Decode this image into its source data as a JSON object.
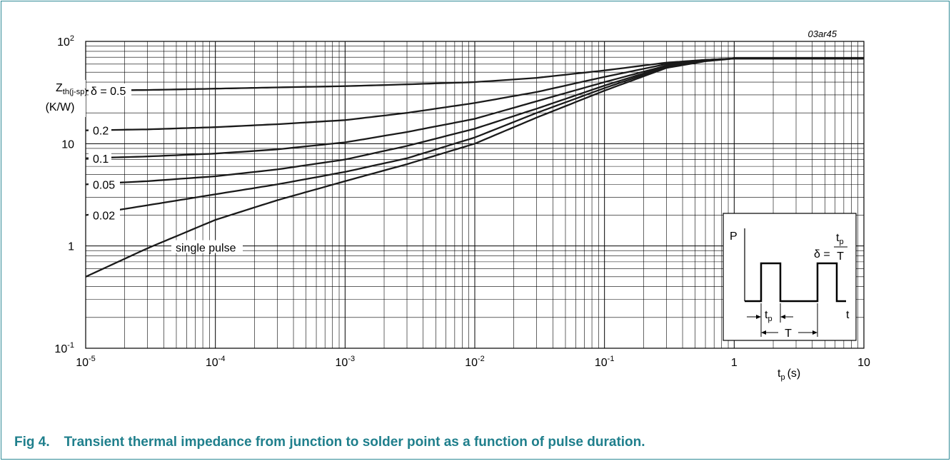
{
  "figure": {
    "number": "Fig 4.",
    "caption": "Transient thermal impedance from junction to solder point as a function of pulse duration.",
    "code": "03ar45"
  },
  "colors": {
    "frame": "#2f8a96",
    "caption": "#1f7f8c",
    "grid": "#000000",
    "curve": "#1a1a1a"
  },
  "chart_data": {
    "type": "line",
    "x_scale": "log",
    "y_scale": "log",
    "xlim": [
      1e-05,
      10
    ],
    "ylim": [
      0.1,
      100
    ],
    "grid": true,
    "x_ticks": [
      {
        "value": 1e-05,
        "base": "10",
        "exp": "-5"
      },
      {
        "value": 0.0001,
        "base": "10",
        "exp": "-4"
      },
      {
        "value": 0.001,
        "base": "10",
        "exp": "-3"
      },
      {
        "value": 0.01,
        "base": "10",
        "exp": "-2"
      },
      {
        "value": 0.1,
        "base": "10",
        "exp": "-1"
      },
      {
        "value": 1,
        "base": "1",
        "exp": ""
      },
      {
        "value": 10,
        "base": "10",
        "exp": ""
      }
    ],
    "y_ticks": [
      {
        "value": 0.1,
        "base": "10",
        "exp": "-1"
      },
      {
        "value": 1,
        "base": "1",
        "exp": ""
      },
      {
        "value": 10,
        "base": "10",
        "exp": ""
      },
      {
        "value": 100,
        "base": "10",
        "exp": "2"
      }
    ],
    "xlabel": {
      "main": "t",
      "sub": "p",
      "unit": "(s)"
    },
    "ylabel": {
      "main": "Z",
      "sub": "th(j-sp)",
      "unit": "(K/W)"
    },
    "series": [
      {
        "name": "δ = 0.5",
        "label": "δ = 0.5",
        "x": [
          1e-05,
          3e-05,
          0.0001,
          0.0003,
          0.001,
          0.003,
          0.01,
          0.03,
          0.1,
          0.3,
          0.6,
          1,
          3,
          10
        ],
        "y": [
          33,
          33.5,
          34.5,
          35.5,
          36.5,
          38,
          40,
          44,
          52,
          62,
          66,
          68,
          68,
          68
        ]
      },
      {
        "name": "0.2",
        "label": "0.2",
        "x": [
          1e-05,
          3e-05,
          0.0001,
          0.0003,
          0.001,
          0.003,
          0.01,
          0.03,
          0.1,
          0.3,
          0.6,
          1,
          3,
          10
        ],
        "y": [
          13.5,
          13.8,
          14.5,
          15.5,
          17,
          20,
          25,
          32,
          45,
          60,
          66,
          68,
          68,
          68
        ]
      },
      {
        "name": "0.1",
        "label": "0.1",
        "x": [
          1e-05,
          3e-05,
          0.0001,
          0.0003,
          0.001,
          0.003,
          0.01,
          0.03,
          0.1,
          0.3,
          0.6,
          1,
          3,
          10
        ],
        "y": [
          7.2,
          7.5,
          8.0,
          8.8,
          10.3,
          13,
          17.5,
          26,
          40,
          58,
          65,
          68,
          68,
          68
        ]
      },
      {
        "name": "0.05",
        "label": "0.05",
        "x": [
          1e-05,
          3e-05,
          0.0001,
          0.0003,
          0.001,
          0.003,
          0.01,
          0.03,
          0.1,
          0.3,
          0.6,
          1,
          3,
          10
        ],
        "y": [
          4.0,
          4.3,
          4.8,
          5.6,
          7.0,
          9.5,
          14,
          22,
          37,
          57,
          65,
          68,
          68,
          68
        ]
      },
      {
        "name": "0.02",
        "label": "0.02",
        "x": [
          1e-05,
          3e-05,
          0.0001,
          0.0003,
          0.001,
          0.003,
          0.01,
          0.03,
          0.1,
          0.3,
          0.6,
          1,
          3,
          10
        ],
        "y": [
          2.0,
          2.5,
          3.2,
          4.0,
          5.3,
          7.2,
          11.5,
          20,
          35,
          56,
          65,
          68,
          68,
          68
        ]
      },
      {
        "name": "single pulse",
        "label": "single pulse",
        "x": [
          1e-05,
          3e-05,
          0.0001,
          0.0003,
          0.001,
          0.003,
          0.01,
          0.03,
          0.1,
          0.3,
          0.6,
          1,
          3,
          10
        ],
        "y": [
          0.5,
          0.95,
          1.8,
          2.8,
          4.3,
          6.3,
          10,
          18,
          33,
          55,
          64,
          68,
          68,
          68
        ]
      }
    ],
    "inset": {
      "p_label": "P",
      "t_label": "t",
      "tp_main": "t",
      "tp_sub": "p",
      "T_label": "T",
      "delta_symbol": "δ =",
      "frac_num_main": "t",
      "frac_num_sub": "p",
      "frac_den": "T"
    }
  }
}
